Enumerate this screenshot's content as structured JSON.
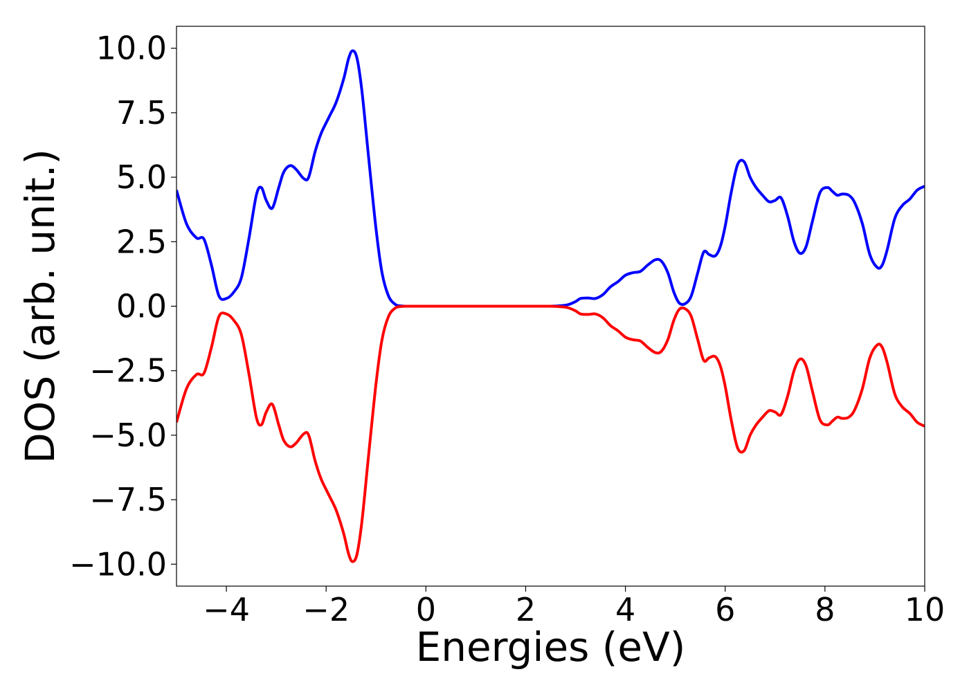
{
  "chart_data": {
    "type": "line",
    "title": "",
    "xlabel": "Energies (eV)",
    "ylabel": "DOS (arb. unit.)",
    "xlim": [
      -5,
      10
    ],
    "ylim": [
      -10.85,
      10.85
    ],
    "xticks": [
      -4,
      -2,
      0,
      2,
      4,
      6,
      8,
      10
    ],
    "yticks": [
      10.0,
      7.5,
      5.0,
      2.5,
      0.0,
      -2.5,
      -5.0,
      -7.5,
      -10.0
    ],
    "xtick_labels": [
      "−4",
      "−2",
      "0",
      "2",
      "4",
      "6",
      "8",
      "10"
    ],
    "ytick_labels": [
      "10.0",
      "7.5",
      "5.0",
      "2.5",
      "0.0",
      "−2.5",
      "−5.0",
      "−7.5",
      "−10.0"
    ],
    "grid": false,
    "legend": "none",
    "series": [
      {
        "color": "#0000ff",
        "x": [
          -5.0,
          -4.8,
          -4.6,
          -4.45,
          -4.3,
          -4.15,
          -4.0,
          -3.85,
          -3.7,
          -3.55,
          -3.4,
          -3.3,
          -3.2,
          -3.08,
          -2.95,
          -2.85,
          -2.72,
          -2.6,
          -2.45,
          -2.35,
          -2.22,
          -2.1,
          -1.95,
          -1.8,
          -1.65,
          -1.55,
          -1.47,
          -1.38,
          -1.28,
          -1.15,
          -1.0,
          -0.88,
          -0.75,
          -0.62,
          -0.5,
          -0.3,
          0.0,
          0.5,
          1.0,
          1.5,
          2.0,
          2.5,
          2.7,
          2.85,
          3.0,
          3.1,
          3.25,
          3.4,
          3.55,
          3.7,
          3.85,
          4.0,
          4.15,
          4.3,
          4.45,
          4.6,
          4.72,
          4.85,
          4.97,
          5.08,
          5.2,
          5.32,
          5.45,
          5.57,
          5.68,
          5.8,
          5.9,
          6.0,
          6.12,
          6.25,
          6.38,
          6.5,
          6.62,
          6.75,
          6.88,
          7.0,
          7.12,
          7.25,
          7.38,
          7.5,
          7.62,
          7.75,
          7.9,
          8.05,
          8.15,
          8.25,
          8.35,
          8.48,
          8.6,
          8.75,
          8.9,
          9.05,
          9.15,
          9.25,
          9.4,
          9.55,
          9.7,
          9.85,
          10.0
        ],
        "values": [
          4.5,
          3.2,
          2.65,
          2.6,
          1.6,
          0.4,
          0.3,
          0.55,
          1.1,
          2.6,
          4.3,
          4.6,
          4.1,
          3.8,
          4.6,
          5.2,
          5.45,
          5.3,
          4.95,
          5.0,
          6.0,
          6.7,
          7.3,
          7.9,
          8.8,
          9.6,
          9.9,
          9.6,
          8.3,
          5.8,
          3.0,
          1.3,
          0.4,
          0.08,
          0.01,
          0.0,
          0.0,
          0.0,
          0.0,
          0.0,
          0.0,
          0.0,
          0.02,
          0.06,
          0.18,
          0.3,
          0.32,
          0.3,
          0.45,
          0.75,
          0.95,
          1.2,
          1.3,
          1.35,
          1.6,
          1.8,
          1.75,
          1.3,
          0.55,
          0.12,
          0.1,
          0.4,
          1.3,
          2.1,
          2.0,
          1.95,
          2.3,
          3.1,
          4.4,
          5.5,
          5.6,
          5.0,
          4.6,
          4.3,
          4.05,
          4.1,
          4.2,
          3.5,
          2.5,
          2.05,
          2.3,
          3.3,
          4.4,
          4.6,
          4.45,
          4.3,
          4.35,
          4.3,
          4.0,
          3.2,
          2.0,
          1.5,
          1.6,
          2.2,
          3.4,
          3.9,
          4.15,
          4.5,
          4.65
        ]
      },
      {
        "color": "#ff0000",
        "x": [
          -5.0,
          -4.8,
          -4.6,
          -4.45,
          -4.3,
          -4.15,
          -4.0,
          -3.85,
          -3.7,
          -3.55,
          -3.4,
          -3.3,
          -3.2,
          -3.08,
          -2.95,
          -2.85,
          -2.72,
          -2.6,
          -2.45,
          -2.35,
          -2.22,
          -2.1,
          -1.95,
          -1.8,
          -1.65,
          -1.55,
          -1.47,
          -1.38,
          -1.28,
          -1.15,
          -1.0,
          -0.88,
          -0.75,
          -0.62,
          -0.5,
          -0.3,
          0.0,
          0.5,
          1.0,
          1.5,
          2.0,
          2.5,
          2.7,
          2.85,
          3.0,
          3.1,
          3.25,
          3.4,
          3.55,
          3.7,
          3.85,
          4.0,
          4.15,
          4.3,
          4.45,
          4.6,
          4.72,
          4.85,
          4.97,
          5.08,
          5.2,
          5.32,
          5.45,
          5.57,
          5.68,
          5.8,
          5.9,
          6.0,
          6.12,
          6.25,
          6.38,
          6.5,
          6.62,
          6.75,
          6.88,
          7.0,
          7.12,
          7.25,
          7.38,
          7.5,
          7.62,
          7.75,
          7.9,
          8.05,
          8.15,
          8.25,
          8.35,
          8.48,
          8.6,
          8.75,
          8.9,
          9.05,
          9.15,
          9.25,
          9.4,
          9.55,
          9.7,
          9.85,
          10.0
        ],
        "values": [
          -4.5,
          -3.2,
          -2.65,
          -2.6,
          -1.6,
          -0.4,
          -0.3,
          -0.55,
          -1.1,
          -2.6,
          -4.3,
          -4.6,
          -4.1,
          -3.8,
          -4.6,
          -5.2,
          -5.45,
          -5.3,
          -4.95,
          -5.0,
          -6.0,
          -6.7,
          -7.3,
          -7.9,
          -8.8,
          -9.6,
          -9.9,
          -9.6,
          -8.3,
          -5.8,
          -3.0,
          -1.3,
          -0.4,
          -0.08,
          -0.01,
          0.0,
          0.0,
          0.0,
          0.0,
          0.0,
          0.0,
          0.0,
          -0.02,
          -0.06,
          -0.18,
          -0.3,
          -0.32,
          -0.3,
          -0.45,
          -0.75,
          -0.95,
          -1.2,
          -1.3,
          -1.35,
          -1.6,
          -1.8,
          -1.75,
          -1.3,
          -0.55,
          -0.12,
          -0.1,
          -0.4,
          -1.3,
          -2.1,
          -2.0,
          -1.95,
          -2.3,
          -3.1,
          -4.4,
          -5.5,
          -5.6,
          -5.0,
          -4.6,
          -4.3,
          -4.05,
          -4.1,
          -4.2,
          -3.5,
          -2.5,
          -2.05,
          -2.3,
          -3.3,
          -4.4,
          -4.6,
          -4.45,
          -4.3,
          -4.35,
          -4.3,
          -4.0,
          -3.2,
          -2.0,
          -1.5,
          -1.6,
          -2.2,
          -3.4,
          -3.9,
          -4.15,
          -4.5,
          -4.65
        ]
      }
    ]
  }
}
